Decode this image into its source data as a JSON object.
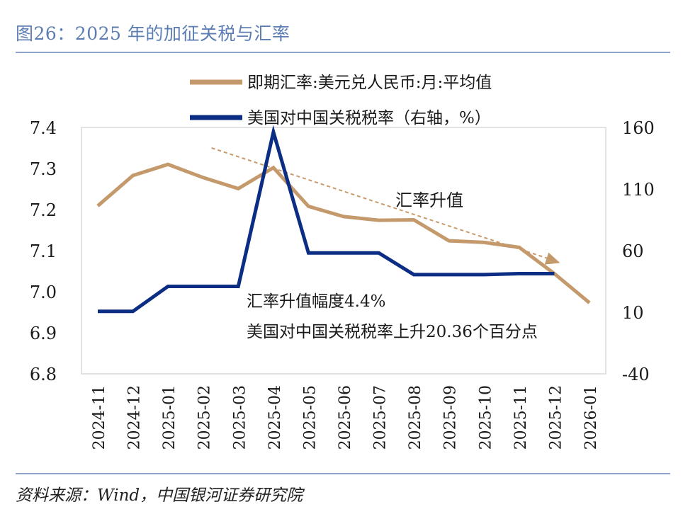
{
  "figure": {
    "title": "图26：2025 年的加征关税与汇率",
    "source": "资料来源：Wind，中国银河证券研究院"
  },
  "chart_data": {
    "type": "line",
    "categories": [
      "2024-11",
      "2024-12",
      "2025-01",
      "2025-02",
      "2025-03",
      "2025-04",
      "2025-05",
      "2025-06",
      "2025-07",
      "2025-08",
      "2025-09",
      "2025-10",
      "2025-11",
      "2025-12",
      "2026-01"
    ],
    "series": [
      {
        "name": "即期汇率:美元兑人民币:月:平均值",
        "axis": "left",
        "color": "#c49a6c",
        "values": [
          7.209,
          7.283,
          7.31,
          7.278,
          7.251,
          7.302,
          7.208,
          7.183,
          7.174,
          7.175,
          7.124,
          7.12,
          7.108,
          7.044,
          6.973
        ]
      },
      {
        "name": "美国对中国关税税率（右轴，%）",
        "axis": "right",
        "color": "#0b2d84",
        "values": [
          10.7,
          10.7,
          31.0,
          31.0,
          31.0,
          156.2,
          58.1,
          58.1,
          58.1,
          40.5,
          40.5,
          40.5,
          41.3,
          41.3,
          null
        ]
      }
    ],
    "y_left": {
      "ticks": [
        "6.8",
        "6.9",
        "7.0",
        "7.1",
        "7.2",
        "7.3",
        "7.4"
      ],
      "range": [
        6.8,
        7.4
      ]
    },
    "y_right": {
      "ticks": [
        "-40",
        "10",
        "60",
        "110",
        "160"
      ],
      "range": [
        -40,
        160
      ]
    },
    "legend_position": "top",
    "annotations": {
      "trend_label": "汇率升值",
      "trend_start": {
        "category": "2025-02",
        "value": 7.35
      },
      "trend_end": {
        "category": "2025-12",
        "value": 7.07
      },
      "note_line1": "汇率升值幅度4.4%",
      "note_line2": "美国对中国关税税率上升20.36个百分点"
    }
  }
}
